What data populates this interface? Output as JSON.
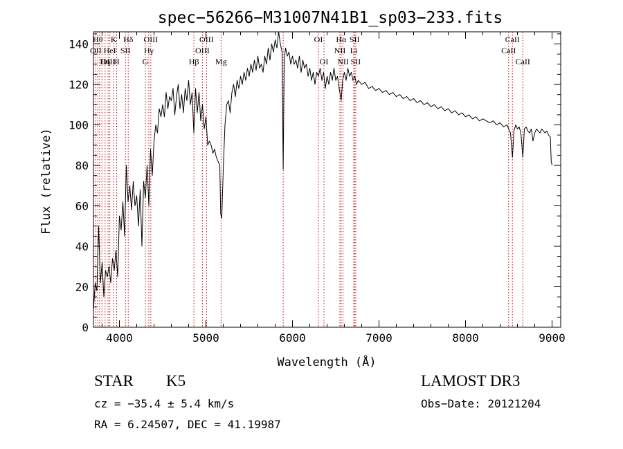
{
  "chart_data": {
    "type": "line",
    "title": "spec−56266−M31007N41B1_sp03−233.fits",
    "xlabel": "Wavelength (Å)",
    "ylabel": "Flux (relative)",
    "xlim": [
      3700,
      9100
    ],
    "ylim": [
      0,
      146
    ],
    "x_ticks": [
      4000,
      5000,
      6000,
      7000,
      8000,
      9000
    ],
    "y_ticks": [
      0,
      20,
      40,
      60,
      80,
      100,
      120,
      140
    ],
    "grid": false,
    "line_color": "#000000",
    "marker_color": "#cc0000",
    "series": [
      {
        "values": [
          [
            3700,
            8
          ],
          [
            3720,
            22
          ],
          [
            3740,
            18
          ],
          [
            3760,
            50
          ],
          [
            3780,
            22
          ],
          [
            3800,
            32
          ],
          [
            3820,
            15
          ],
          [
            3840,
            28
          ],
          [
            3860,
            25
          ],
          [
            3880,
            30
          ],
          [
            3900,
            22
          ],
          [
            3920,
            34
          ],
          [
            3940,
            28
          ],
          [
            3960,
            38
          ],
          [
            3980,
            25
          ],
          [
            4000,
            55
          ],
          [
            4020,
            48
          ],
          [
            4040,
            62
          ],
          [
            4060,
            45
          ],
          [
            4080,
            80
          ],
          [
            4100,
            62
          ],
          [
            4120,
            70
          ],
          [
            4140,
            58
          ],
          [
            4160,
            72
          ],
          [
            4180,
            60
          ],
          [
            4200,
            65
          ],
          [
            4220,
            50
          ],
          [
            4240,
            68
          ],
          [
            4260,
            40
          ],
          [
            4280,
            72
          ],
          [
            4300,
            64
          ],
          [
            4320,
            80
          ],
          [
            4340,
            60
          ],
          [
            4360,
            88
          ],
          [
            4380,
            75
          ],
          [
            4400,
            92
          ],
          [
            4420,
            100
          ],
          [
            4440,
            96
          ],
          [
            4460,
            108
          ],
          [
            4480,
            104
          ],
          [
            4500,
            110
          ],
          [
            4520,
            104
          ],
          [
            4540,
            116
          ],
          [
            4560,
            108
          ],
          [
            4580,
            114
          ],
          [
            4600,
            112
          ],
          [
            4620,
            118
          ],
          [
            4640,
            105
          ],
          [
            4660,
            114
          ],
          [
            4680,
            120
          ],
          [
            4700,
            108
          ],
          [
            4720,
            115
          ],
          [
            4740,
            106
          ],
          [
            4760,
            118
          ],
          [
            4780,
            112
          ],
          [
            4800,
            122
          ],
          [
            4820,
            110
          ],
          [
            4840,
            116
          ],
          [
            4860,
            96
          ],
          [
            4880,
            118
          ],
          [
            4900,
            106
          ],
          [
            4920,
            116
          ],
          [
            4940,
            102
          ],
          [
            4960,
            110
          ],
          [
            4980,
            98
          ],
          [
            5000,
            104
          ],
          [
            5020,
            90
          ],
          [
            5040,
            92
          ],
          [
            5060,
            90
          ],
          [
            5080,
            86
          ],
          [
            5100,
            88
          ],
          [
            5120,
            84
          ],
          [
            5140,
            82
          ],
          [
            5160,
            80
          ],
          [
            5170,
            56
          ],
          [
            5183,
            54
          ],
          [
            5200,
            78
          ],
          [
            5220,
            100
          ],
          [
            5240,
            110
          ],
          [
            5260,
            112
          ],
          [
            5280,
            106
          ],
          [
            5300,
            116
          ],
          [
            5320,
            120
          ],
          [
            5340,
            114
          ],
          [
            5360,
            122
          ],
          [
            5380,
            118
          ],
          [
            5400,
            124
          ],
          [
            5420,
            120
          ],
          [
            5440,
            126
          ],
          [
            5460,
            122
          ],
          [
            5480,
            128
          ],
          [
            5500,
            124
          ],
          [
            5520,
            130
          ],
          [
            5540,
            126
          ],
          [
            5560,
            132
          ],
          [
            5580,
            127
          ],
          [
            5600,
            134
          ],
          [
            5620,
            128
          ],
          [
            5640,
            130
          ],
          [
            5660,
            126
          ],
          [
            5680,
            134
          ],
          [
            5700,
            130
          ],
          [
            5720,
            138
          ],
          [
            5740,
            132
          ],
          [
            5760,
            140
          ],
          [
            5780,
            136
          ],
          [
            5800,
            142
          ],
          [
            5820,
            138
          ],
          [
            5840,
            146
          ],
          [
            5860,
            140
          ],
          [
            5880,
            136
          ],
          [
            5893,
            78
          ],
          [
            5905,
            132
          ],
          [
            5920,
            138
          ],
          [
            5940,
            134
          ],
          [
            5960,
            136
          ],
          [
            5980,
            130
          ],
          [
            6000,
            134
          ],
          [
            6020,
            130
          ],
          [
            6040,
            132
          ],
          [
            6060,
            128
          ],
          [
            6080,
            134
          ],
          [
            6100,
            126
          ],
          [
            6120,
            132
          ],
          [
            6140,
            128
          ],
          [
            6160,
            130
          ],
          [
            6180,
            124
          ],
          [
            6200,
            128
          ],
          [
            6220,
            122
          ],
          [
            6240,
            126
          ],
          [
            6260,
            120
          ],
          [
            6280,
            126
          ],
          [
            6300,
            124
          ],
          [
            6320,
            128
          ],
          [
            6340,
            122
          ],
          [
            6360,
            126
          ],
          [
            6380,
            118
          ],
          [
            6400,
            124
          ],
          [
            6420,
            120
          ],
          [
            6440,
            126
          ],
          [
            6460,
            122
          ],
          [
            6480,
            128
          ],
          [
            6500,
            122
          ],
          [
            6520,
            124
          ],
          [
            6540,
            118
          ],
          [
            6563,
            112
          ],
          [
            6580,
            122
          ],
          [
            6600,
            126
          ],
          [
            6620,
            122
          ],
          [
            6640,
            128
          ],
          [
            6660,
            124
          ],
          [
            6680,
            126
          ],
          [
            6700,
            122
          ],
          [
            6720,
            124
          ],
          [
            6740,
            120
          ],
          [
            6760,
            122
          ],
          [
            6800,
            120
          ],
          [
            6840,
            121
          ],
          [
            6880,
            118
          ],
          [
            6920,
            119
          ],
          [
            6960,
            117
          ],
          [
            7000,
            118
          ],
          [
            7040,
            116
          ],
          [
            7080,
            117
          ],
          [
            7120,
            115
          ],
          [
            7160,
            116
          ],
          [
            7200,
            114
          ],
          [
            7240,
            115
          ],
          [
            7280,
            113
          ],
          [
            7320,
            114
          ],
          [
            7360,
            112
          ],
          [
            7400,
            113
          ],
          [
            7440,
            111
          ],
          [
            7480,
            112
          ],
          [
            7520,
            110
          ],
          [
            7560,
            111
          ],
          [
            7600,
            109
          ],
          [
            7640,
            110
          ],
          [
            7680,
            108
          ],
          [
            7720,
            109
          ],
          [
            7760,
            107
          ],
          [
            7800,
            108
          ],
          [
            7840,
            106
          ],
          [
            7880,
            107
          ],
          [
            7920,
            105
          ],
          [
            7960,
            106
          ],
          [
            8000,
            104
          ],
          [
            8040,
            105
          ],
          [
            8080,
            103
          ],
          [
            8120,
            104
          ],
          [
            8160,
            102
          ],
          [
            8200,
            103
          ],
          [
            8240,
            102
          ],
          [
            8280,
            101
          ],
          [
            8320,
            102
          ],
          [
            8360,
            100
          ],
          [
            8400,
            101
          ],
          [
            8440,
            99
          ],
          [
            8480,
            100
          ],
          [
            8500,
            98
          ],
          [
            8520,
            96
          ],
          [
            8542,
            84
          ],
          [
            8560,
            97
          ],
          [
            8580,
            100
          ],
          [
            8600,
            98
          ],
          [
            8620,
            99
          ],
          [
            8640,
            96
          ],
          [
            8662,
            84
          ],
          [
            8680,
            98
          ],
          [
            8700,
            99
          ],
          [
            8720,
            97
          ],
          [
            8740,
            96
          ],
          [
            8760,
            98
          ],
          [
            8780,
            92
          ],
          [
            8800,
            96
          ],
          [
            8820,
            98
          ],
          [
            8840,
            97
          ],
          [
            8860,
            96
          ],
          [
            8880,
            98
          ],
          [
            8900,
            97
          ],
          [
            8920,
            96
          ],
          [
            8940,
            97
          ],
          [
            8960,
            95
          ],
          [
            8980,
            94
          ],
          [
            8990,
            82
          ],
          [
            9000,
            80
          ]
        ]
      }
    ],
    "lines": [
      {
        "x": 3727,
        "top": "OII",
        "row": 1
      },
      {
        "x": 3750,
        "top": "Hθ",
        "row": 0
      },
      {
        "x": 3771,
        "top": "",
        "row": 0
      },
      {
        "x": 3798,
        "top": "",
        "row": 0
      },
      {
        "x": 3835,
        "top": "Hη",
        "row": 2
      },
      {
        "x": 3869,
        "top": "OIII",
        "row": 2
      },
      {
        "x": 3889,
        "top": "HeI",
        "row": 1
      },
      {
        "x": 3934,
        "top": "K",
        "row": 0
      },
      {
        "x": 3968,
        "top": "H",
        "row": 2
      },
      {
        "x": 4070,
        "top": "SII",
        "row": 1
      },
      {
        "x": 4102,
        "top": "Hδ",
        "row": 0
      },
      {
        "x": 4300,
        "top": "G",
        "row": 2
      },
      {
        "x": 4340,
        "top": "Hγ",
        "row": 1
      },
      {
        "x": 4363,
        "top": "OIII",
        "row": 0
      },
      {
        "x": 4861,
        "top": "Hβ",
        "row": 2
      },
      {
        "x": 4959,
        "top": "OIII",
        "row": 1
      },
      {
        "x": 5007,
        "top": "OIII",
        "row": 0
      },
      {
        "x": 5175,
        "top": "Mg",
        "row": 2
      },
      {
        "x": 5893,
        "top": "",
        "row": 0
      },
      {
        "x": 6300,
        "top": "OI",
        "row": 0
      },
      {
        "x": 6364,
        "top": "OI",
        "row": 2
      },
      {
        "x": 6548,
        "top": "NII",
        "row": 1
      },
      {
        "x": 6563,
        "top": "Hα",
        "row": 0
      },
      {
        "x": 6584,
        "top": "NII",
        "row": 2
      },
      {
        "x": 6708,
        "top": "Li",
        "row": 1
      },
      {
        "x": 6717,
        "top": "SII",
        "row": 0
      },
      {
        "x": 6731,
        "top": "SII",
        "row": 2
      },
      {
        "x": 8498,
        "top": "CaII",
        "row": 1
      },
      {
        "x": 8542,
        "top": "CaII",
        "row": 0
      },
      {
        "x": 8662,
        "top": "CaII",
        "row": 2
      }
    ]
  },
  "footer": {
    "object_class": "STAR",
    "subclass": "K5",
    "survey": "LAMOST DR3",
    "redshift": "cz = −35.4 ± 5.4 km/s",
    "obs_date": "Obs−Date: 20121204",
    "coordinates": "RA =   6.24507, DEC =  41.19987"
  }
}
